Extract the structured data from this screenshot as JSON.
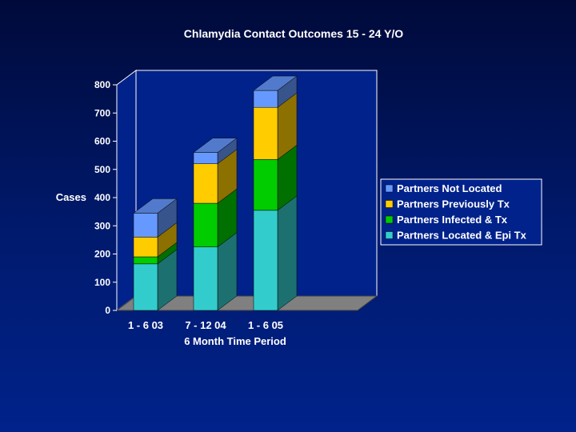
{
  "chart_data": {
    "type": "bar",
    "stacked": true,
    "three_d": true,
    "title": "Chlamydia Contact Outcomes 15 - 24 Y/O",
    "xlabel": "6 Month Time Period",
    "ylabel": "Cases",
    "ylim": [
      0,
      800
    ],
    "yticks": [
      0,
      100,
      200,
      300,
      400,
      500,
      600,
      700,
      800
    ],
    "categories": [
      "1 - 6 03",
      "7 - 12 04",
      "1 - 6 05"
    ],
    "series": [
      {
        "name": "Partners Located & Epi Tx",
        "values": [
          165,
          225,
          355
        ],
        "color": "#33cccc"
      },
      {
        "name": "Partners Infected & Tx",
        "values": [
          25,
          155,
          180
        ],
        "color": "#00cc00"
      },
      {
        "name": "Partners Previously Tx",
        "values": [
          70,
          140,
          185
        ],
        "color": "#ffcc00"
      },
      {
        "name": "Partners Not Located",
        "values": [
          85,
          40,
          60
        ],
        "color": "#6699ff"
      }
    ],
    "legend": {
      "placement": "right",
      "order": [
        "Partners Not Located",
        "Partners Previously Tx",
        "Partners Infected & Tx",
        "Partners Located & Epi Tx"
      ]
    },
    "grid": false,
    "colors": {
      "background_top": "#000a3a",
      "background_bottom": "#00228a",
      "plot_wall": "#00228a",
      "floor": "#808080",
      "text": "#ffffff"
    }
  }
}
